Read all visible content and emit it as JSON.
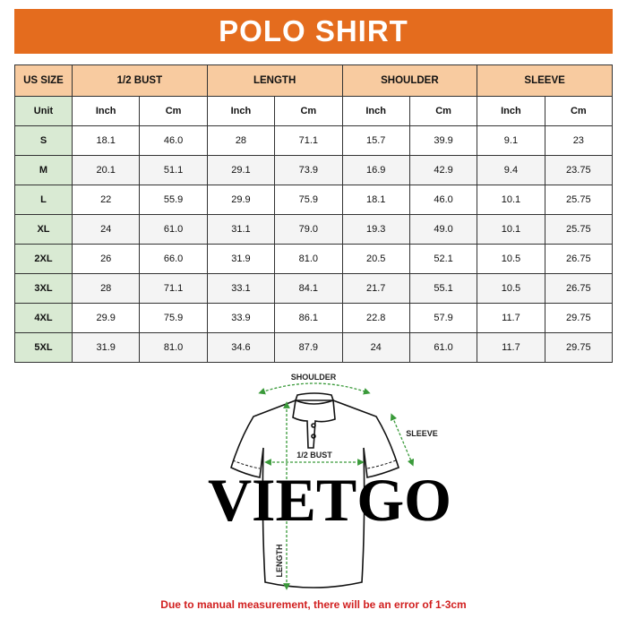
{
  "title": "POLO SHIRT",
  "table": {
    "headers": [
      "US SIZE",
      "1/2 BUST",
      "LENGTH",
      "SHOULDER",
      "SLEEVE"
    ],
    "unit_label": "Unit",
    "units": [
      "Inch",
      "Cm",
      "Inch",
      "Cm",
      "Inch",
      "Cm",
      "Inch",
      "Cm"
    ],
    "rows": [
      {
        "size": "S",
        "values": [
          "18.1",
          "46.0",
          "28",
          "71.1",
          "15.7",
          "39.9",
          "9.1",
          "23"
        ]
      },
      {
        "size": "M",
        "values": [
          "20.1",
          "51.1",
          "29.1",
          "73.9",
          "16.9",
          "42.9",
          "9.4",
          "23.75"
        ]
      },
      {
        "size": "L",
        "values": [
          "22",
          "55.9",
          "29.9",
          "75.9",
          "18.1",
          "46.0",
          "10.1",
          "25.75"
        ]
      },
      {
        "size": "XL",
        "values": [
          "24",
          "61.0",
          "31.1",
          "79.0",
          "19.3",
          "49.0",
          "10.1",
          "25.75"
        ]
      },
      {
        "size": "2XL",
        "values": [
          "26",
          "66.0",
          "31.9",
          "81.0",
          "20.5",
          "52.1",
          "10.5",
          "26.75"
        ]
      },
      {
        "size": "3XL",
        "values": [
          "28",
          "71.1",
          "33.1",
          "84.1",
          "21.7",
          "55.1",
          "10.5",
          "26.75"
        ]
      },
      {
        "size": "4XL",
        "values": [
          "29.9",
          "75.9",
          "33.9",
          "86.1",
          "22.8",
          "57.9",
          "11.7",
          "29.75"
        ]
      },
      {
        "size": "5XL",
        "values": [
          "31.9",
          "81.0",
          "34.6",
          "87.9",
          "24",
          "61.0",
          "11.7",
          "29.75"
        ]
      }
    ]
  },
  "diagram": {
    "shoulder_label": "SHOULDER",
    "sleeve_label": "SLEEVE",
    "bust_label": "1/2 BUST",
    "length_label": "LENGTH"
  },
  "watermark": "VIETGO",
  "note": "Due to manual measurement, there will be an error of 1-3cm",
  "colors": {
    "title_bg": "#e46c1e",
    "header_bg": "#f8cba0",
    "size_col_bg": "#d9ead3",
    "arrow": "#3a9a3a",
    "note": "#d11f1f"
  }
}
